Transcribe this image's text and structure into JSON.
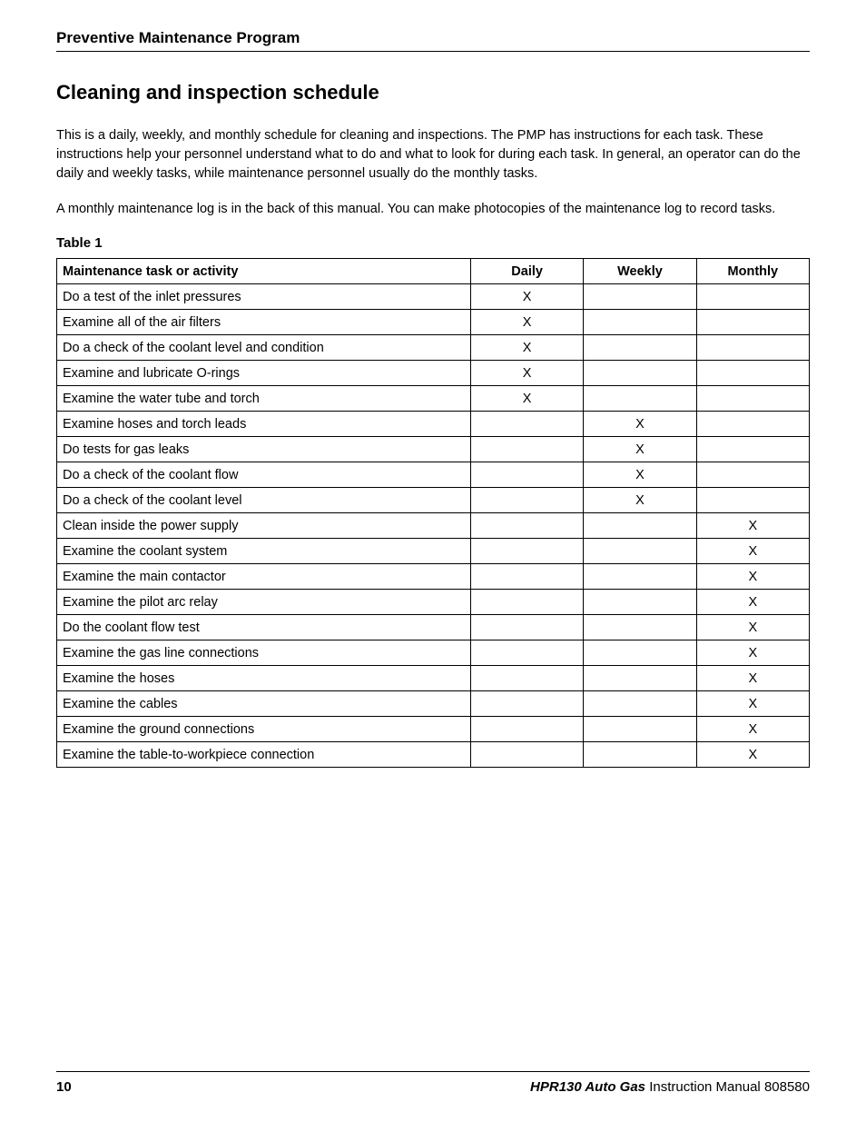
{
  "header": {
    "section": "Preventive Maintenance Program"
  },
  "section_title": "Cleaning and inspection schedule",
  "paragraphs": [
    "This is a daily, weekly, and monthly schedule for cleaning and inspections. The PMP has instructions for each task. These instructions help your personnel understand what to do and what to look for during each task. In general, an operator can do the daily and weekly tasks, while maintenance personnel usually do the monthly tasks.",
    "A monthly maintenance log is in the back of this manual. You can make photocopies of the maintenance log to record tasks."
  ],
  "table": {
    "label": "Table 1",
    "columns": [
      "Maintenance task or activity",
      "Daily",
      "Weekly",
      "Monthly"
    ],
    "rows": [
      {
        "task": "Do a test of the inlet pressures",
        "daily": "X",
        "weekly": "",
        "monthly": ""
      },
      {
        "task": "Examine all of the air filters",
        "daily": "X",
        "weekly": "",
        "monthly": ""
      },
      {
        "task": "Do a check of the coolant level and condition",
        "daily": "X",
        "weekly": "",
        "monthly": ""
      },
      {
        "task": "Examine and lubricate O-rings",
        "daily": "X",
        "weekly": "",
        "monthly": ""
      },
      {
        "task": "Examine the water tube and torch",
        "daily": "X",
        "weekly": "",
        "monthly": ""
      },
      {
        "task": "Examine hoses and torch leads",
        "daily": "",
        "weekly": "X",
        "monthly": ""
      },
      {
        "task": "Do tests for gas leaks",
        "daily": "",
        "weekly": "X",
        "monthly": ""
      },
      {
        "task": "Do a check of the coolant flow",
        "daily": "",
        "weekly": "X",
        "monthly": ""
      },
      {
        "task": "Do a check of the coolant level",
        "daily": "",
        "weekly": "X",
        "monthly": ""
      },
      {
        "task": "Clean inside the power supply",
        "daily": "",
        "weekly": "",
        "monthly": "X"
      },
      {
        "task": "Examine the coolant system",
        "daily": "",
        "weekly": "",
        "monthly": "X"
      },
      {
        "task": "Examine the main contactor",
        "daily": "",
        "weekly": "",
        "monthly": "X"
      },
      {
        "task": "Examine the pilot arc relay",
        "daily": "",
        "weekly": "",
        "monthly": "X"
      },
      {
        "task": "Do the coolant flow test",
        "daily": "",
        "weekly": "",
        "monthly": "X"
      },
      {
        "task": "Examine the gas line connections",
        "daily": "",
        "weekly": "",
        "monthly": "X"
      },
      {
        "task": "Examine the hoses",
        "daily": "",
        "weekly": "",
        "monthly": "X"
      },
      {
        "task": "Examine the cables",
        "daily": "",
        "weekly": "",
        "monthly": "X"
      },
      {
        "task": "Examine the ground connections",
        "daily": "",
        "weekly": "",
        "monthly": "X"
      },
      {
        "task": "Examine the table-to-workpiece connection",
        "daily": "",
        "weekly": "",
        "monthly": "X"
      }
    ]
  },
  "footer": {
    "page_number": "10",
    "product": "HPR130 Auto Gas",
    "manual_label": "Instruction Manual",
    "doc_number": "808580"
  }
}
